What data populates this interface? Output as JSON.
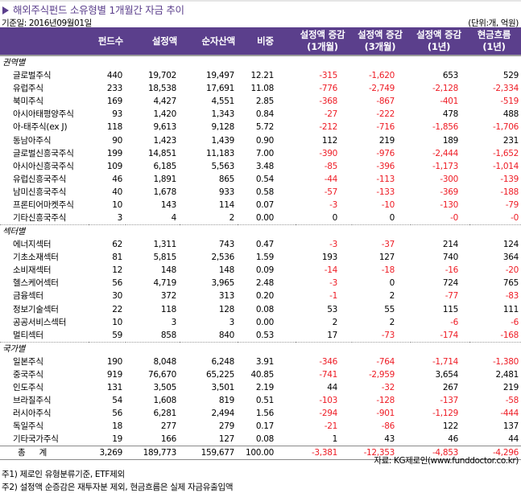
{
  "title": "해외주식펀드 소유형별 1개월간 자금 추이",
  "base_date": "기준일: 2016년09월01일",
  "unit": "(단위:개, 억원)",
  "colors": {
    "header_bg": "#5b3f8c",
    "title": "#5b3f8c",
    "negative": "#ee1c25"
  },
  "columns": [
    {
      "line1": "",
      "line2": ""
    },
    {
      "line1": "펀드수",
      "line2": ""
    },
    {
      "line1": "설정액",
      "line2": ""
    },
    {
      "line1": "순자산액",
      "line2": ""
    },
    {
      "line1": "비중",
      "line2": ""
    },
    {
      "line1": "설정액 증감",
      "line2": "(1개월)"
    },
    {
      "line1": "설정액 증감",
      "line2": "(3개월)"
    },
    {
      "line1": "설정액 증감",
      "line2": "(1년)"
    },
    {
      "line1": "현금흐름",
      "line2": "(1년)"
    }
  ],
  "sections": [
    {
      "label": "권역별",
      "rows": [
        [
          "글로벌주식",
          "440",
          "19,702",
          "19,497",
          "12.21",
          "-315",
          "-1,620",
          "653",
          "529"
        ],
        [
          "유럽주식",
          "233",
          "18,538",
          "17,691",
          "11.08",
          "-776",
          "-2,749",
          "-2,128",
          "-2,334"
        ],
        [
          "북미주식",
          "169",
          "4,427",
          "4,551",
          "2.85",
          "-368",
          "-867",
          "-401",
          "-519"
        ],
        [
          "아시아태평양주식",
          "93",
          "1,420",
          "1,343",
          "0.84",
          "-27",
          "-222",
          "478",
          "488"
        ],
        [
          "아-태주식(ex J)",
          "118",
          "9,613",
          "9,128",
          "5.72",
          "-212",
          "-716",
          "-1,856",
          "-1,706"
        ],
        [
          "동남아주식",
          "90",
          "1,423",
          "1,439",
          "0.90",
          "112",
          "219",
          "189",
          "231"
        ],
        [
          "글로벌신흥국주식",
          "199",
          "14,851",
          "11,183",
          "7.00",
          "-390",
          "-976",
          "-2,444",
          "-1,652"
        ],
        [
          "아시아신흥국주식",
          "109",
          "6,185",
          "5,563",
          "3.48",
          "-85",
          "-396",
          "-1,173",
          "-1,014"
        ],
        [
          "유럽신흥국주식",
          "46",
          "1,891",
          "865",
          "0.54",
          "-44",
          "-113",
          "-300",
          "-139"
        ],
        [
          "남미신흥국주식",
          "40",
          "1,678",
          "933",
          "0.58",
          "-57",
          "-133",
          "-369",
          "-188"
        ],
        [
          "프론티어마켓주식",
          "10",
          "143",
          "114",
          "0.07",
          "-3",
          "-10",
          "-130",
          "-79"
        ],
        [
          "기타신흥국주식",
          "3",
          "4",
          "2",
          "0.00",
          "0",
          "0",
          "-0",
          "-0"
        ]
      ]
    },
    {
      "label": "섹터별",
      "rows": [
        [
          "에너지섹터",
          "62",
          "1,311",
          "743",
          "0.47",
          "-3",
          "-37",
          "214",
          "124"
        ],
        [
          "기초소재섹터",
          "81",
          "5,815",
          "2,536",
          "1.59",
          "193",
          "127",
          "740",
          "364"
        ],
        [
          "소비재섹터",
          "12",
          "148",
          "148",
          "0.09",
          "-14",
          "-18",
          "-16",
          "-20"
        ],
        [
          "헬스케어섹터",
          "56",
          "4,719",
          "3,965",
          "2.48",
          "-3",
          "0",
          "724",
          "765"
        ],
        [
          "금융섹터",
          "30",
          "372",
          "313",
          "0.20",
          "-1",
          "2",
          "-77",
          "-83"
        ],
        [
          "정보기술섹터",
          "22",
          "118",
          "128",
          "0.08",
          "53",
          "55",
          "115",
          "111"
        ],
        [
          "공공서비스섹터",
          "10",
          "3",
          "3",
          "0.00",
          "2",
          "2",
          "-6",
          "-6"
        ],
        [
          "멀티섹터",
          "59",
          "858",
          "840",
          "0.53",
          "17",
          "-73",
          "-174",
          "-168"
        ]
      ]
    },
    {
      "label": "국가별",
      "rows": [
        [
          "일본주식",
          "190",
          "8,048",
          "6,248",
          "3.91",
          "-346",
          "-764",
          "-1,714",
          "-1,380"
        ],
        [
          "중국주식",
          "919",
          "76,670",
          "65,225",
          "40.85",
          "-741",
          "-2,959",
          "3,654",
          "2,481"
        ],
        [
          "인도주식",
          "131",
          "3,505",
          "3,501",
          "2.19",
          "44",
          "-32",
          "267",
          "219"
        ],
        [
          "브라질주식",
          "54",
          "1,608",
          "819",
          "0.51",
          "-103",
          "-128",
          "-137",
          "-58"
        ],
        [
          "러시아주식",
          "56",
          "6,281",
          "2,494",
          "1.56",
          "-294",
          "-901",
          "-1,129",
          "-444"
        ],
        [
          "독일주식",
          "18",
          "277",
          "279",
          "0.17",
          "-21",
          "-86",
          "122",
          "137"
        ],
        [
          "기타국가주식",
          "19",
          "166",
          "127",
          "0.08",
          "1",
          "43",
          "46",
          "44"
        ]
      ]
    }
  ],
  "total": [
    "총 계",
    "3,269",
    "189,773",
    "159,677",
    "100.00",
    "-3,381",
    "-12,353",
    "-4,853",
    "-4,296"
  ],
  "source": "자료: KG제로인(www.funddoctor.co.kr)",
  "notes": [
    "주1) 제로인 유형분류기준, ETF제외",
    "주2) 설정액 순증감은 재투자분 제외, 현금흐름은 실제 자금유출입액"
  ]
}
